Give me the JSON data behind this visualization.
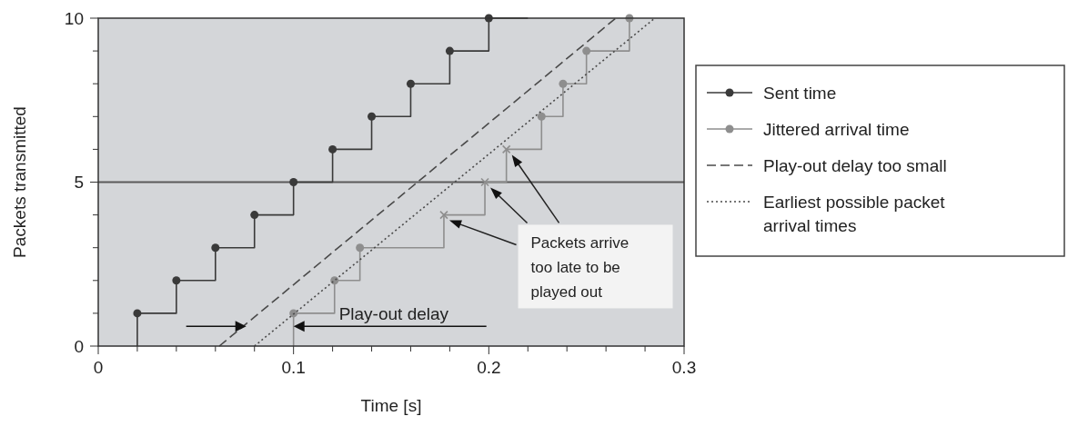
{
  "chart_data": {
    "type": "step",
    "xlabel": "Time [s]",
    "ylabel": "Packets transmitted",
    "xlim": [
      0,
      0.3
    ],
    "ylim": [
      0,
      10
    ],
    "xticks": [
      0,
      {
        "value": 0.02,
        "label": null
      },
      {
        "value": 0.04,
        "label": null
      },
      {
        "value": 0.06,
        "label": null
      },
      {
        "value": 0.08,
        "label": null
      },
      0.1,
      {
        "value": 0.12,
        "label": null
      },
      {
        "value": 0.14,
        "label": null
      },
      {
        "value": 0.16,
        "label": null
      },
      {
        "value": 0.18,
        "label": null
      },
      0.2,
      {
        "value": 0.22,
        "label": null
      },
      {
        "value": 0.24,
        "label": null
      },
      {
        "value": 0.26,
        "label": null
      },
      {
        "value": 0.28,
        "label": null
      },
      0.3
    ],
    "yticks": [
      0,
      {
        "value": 1,
        "label": null
      },
      {
        "value": 2,
        "label": null
      },
      {
        "value": 3,
        "label": null
      },
      {
        "value": 4,
        "label": null
      },
      5,
      {
        "value": 6,
        "label": null
      },
      {
        "value": 7,
        "label": null
      },
      {
        "value": 8,
        "label": null
      },
      {
        "value": 9,
        "label": null
      },
      10
    ],
    "series": [
      {
        "name": "Sent time",
        "color": "#3a3a3a",
        "marker": "circle",
        "x": [
          0.02,
          0.02,
          0.04,
          0.06,
          0.08,
          0.1,
          0.12,
          0.14,
          0.16,
          0.18,
          0.2,
          0.22
        ],
        "values": [
          0,
          1,
          2,
          3,
          4,
          5,
          6,
          7,
          8,
          9,
          10,
          10
        ]
      },
      {
        "name": "Jittered arrival time",
        "color": "#8e8e8e",
        "marker": "circle",
        "x": [
          0.1,
          0.1,
          0.121,
          0.134,
          0.177,
          0.198,
          0.209,
          0.227,
          0.238,
          0.25,
          0.272
        ],
        "values": [
          0,
          1,
          2,
          3,
          4,
          5,
          6,
          7,
          8,
          9,
          10
        ]
      },
      {
        "type": "scatter",
        "color": "#8e8e8e",
        "marker": "cross",
        "x": [
          0.177,
          0.198,
          0.209
        ],
        "values": [
          4,
          5,
          6
        ]
      },
      {
        "name": "Play-out delay too small",
        "type": "line",
        "color": "#4a4a4a",
        "line_style": "dashed",
        "marker": "none",
        "x": [
          0.062,
          0.265
        ],
        "values": [
          0,
          10
        ]
      },
      {
        "name": "Earliest possible packet arrival times",
        "type": "line",
        "color": "#4a4a4a",
        "line_style": "dotted",
        "marker": "none",
        "x": [
          0.08,
          0.285
        ],
        "values": [
          0,
          10
        ]
      }
    ],
    "ref_lines": [
      {
        "axis": "y",
        "value": 5,
        "color": "#5a5a5a",
        "line_style": "solid"
      }
    ],
    "annotations": [
      {
        "text": "Play-out delay",
        "x": 0.1,
        "y": 0.6
      },
      "Packets arrive too late to be played out"
    ],
    "legend": "right",
    "grid": false
  }
}
